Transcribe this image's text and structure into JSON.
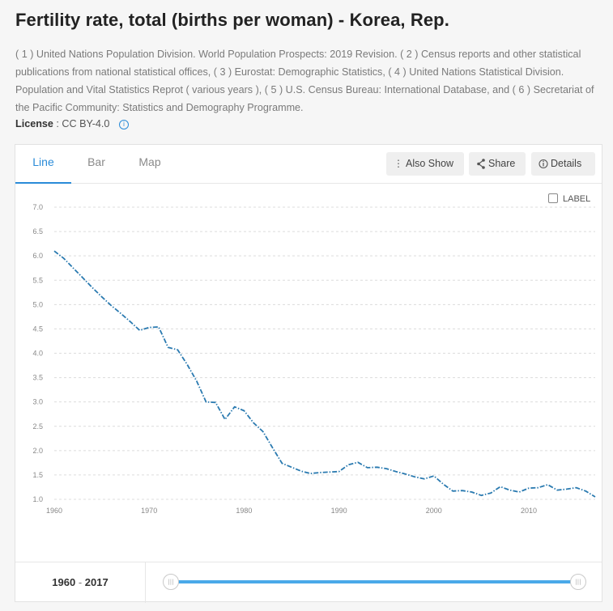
{
  "page": {
    "title": "Fertility rate, total (births per woman) - Korea, Rep.",
    "source": "( 1 ) United Nations Population Division. World Population Prospects: 2019 Revision. ( 2 ) Census reports and other statistical publications from national statistical offices, ( 3 ) Eurostat: Demographic Statistics, ( 4 ) United Nations Statistical Division. Population and Vital Statistics Reprot ( various years ), ( 5 ) U.S. Census Bureau: International Database, and ( 6 ) Secretariat of the Pacific Community: Statistics and Demography Programme.",
    "license_label": "License",
    "license_value": ": CC BY-4.0",
    "info_icon": "info-icon"
  },
  "tabs": [
    "Line",
    "Bar",
    "Map"
  ],
  "active_tab": "Line",
  "toolbar": {
    "also_show": "Also Show",
    "share": "Share",
    "details": "Details",
    "also_show_icon": "vertical-dots-icon",
    "share_icon": "share-icon",
    "details_icon": "info-icon"
  },
  "label_toggle": {
    "text": "LABEL",
    "checked": false
  },
  "range": {
    "start": "1960",
    "end": "2017",
    "separator": " - "
  },
  "colors": {
    "accent": "#2a8bd8",
    "line": "#2a7ab0",
    "slider": "#4aa9e9"
  },
  "chart_data": {
    "type": "line",
    "title": "",
    "xlabel": "",
    "ylabel": "",
    "ylim": [
      1.0,
      7.0
    ],
    "yticks": [
      "1.0",
      "1.5",
      "2.0",
      "2.5",
      "3.0",
      "3.5",
      "4.0",
      "4.5",
      "5.0",
      "5.5",
      "6.0",
      "6.5",
      "7.0"
    ],
    "xlim": [
      1960,
      2017
    ],
    "xticks": [
      "1960",
      "1970",
      "1980",
      "1990",
      "2000",
      "2010"
    ],
    "grid": true,
    "line_style": "dash-dot",
    "series": [
      {
        "x": [
          1960,
          1961,
          1962,
          1963,
          1964,
          1965,
          1966,
          1967,
          1968,
          1969,
          1970,
          1971,
          1972,
          1973,
          1974,
          1975,
          1976,
          1977,
          1978,
          1979,
          1980,
          1981,
          1982,
          1983,
          1984,
          1985,
          1986,
          1987,
          1988,
          1989,
          1990,
          1991,
          1992,
          1993,
          1994,
          1995,
          1996,
          1997,
          1998,
          1999,
          2000,
          2001,
          2002,
          2003,
          2004,
          2005,
          2006,
          2007,
          2008,
          2009,
          2010,
          2011,
          2012,
          2013,
          2014,
          2015,
          2016,
          2017
        ],
        "values": [
          6.1,
          5.95,
          5.75,
          5.55,
          5.35,
          5.16,
          4.98,
          4.82,
          4.65,
          4.47,
          4.53,
          4.54,
          4.12,
          4.07,
          3.77,
          3.43,
          3.0,
          2.99,
          2.64,
          2.9,
          2.82,
          2.57,
          2.39,
          2.06,
          1.74,
          1.66,
          1.58,
          1.53,
          1.55,
          1.56,
          1.57,
          1.71,
          1.76,
          1.65,
          1.66,
          1.63,
          1.57,
          1.52,
          1.46,
          1.42,
          1.48,
          1.31,
          1.17,
          1.18,
          1.15,
          1.08,
          1.13,
          1.26,
          1.19,
          1.15,
          1.23,
          1.24,
          1.3,
          1.19,
          1.21,
          1.24,
          1.17,
          1.05
        ]
      }
    ]
  }
}
